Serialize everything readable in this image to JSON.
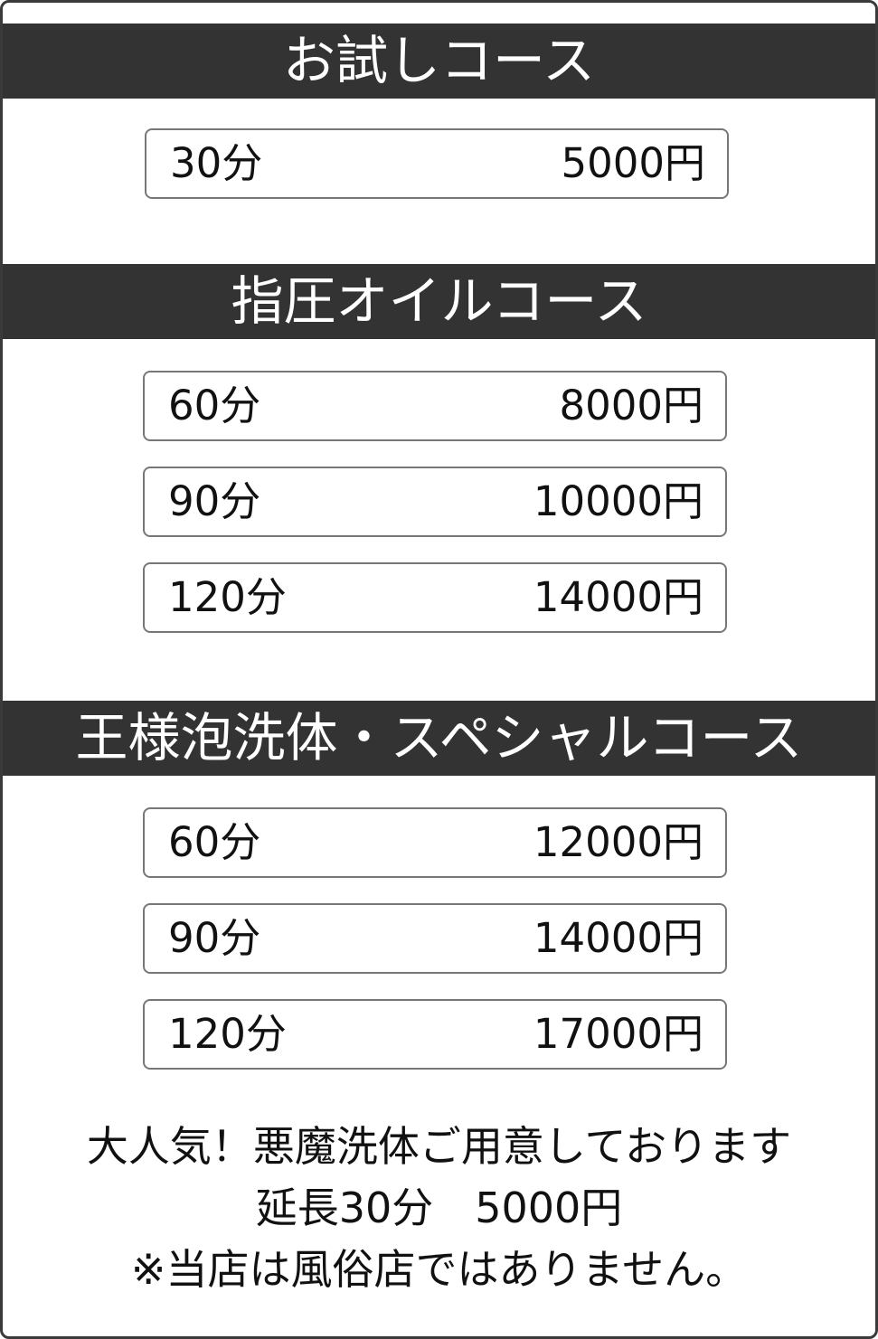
{
  "sections": [
    {
      "title": "お試しコース",
      "items": [
        {
          "duration": "30分",
          "price": "5000円"
        }
      ]
    },
    {
      "title": "指圧オイルコース",
      "items": [
        {
          "duration": "60分",
          "price": "8000円"
        },
        {
          "duration": "90分",
          "price": "10000円"
        },
        {
          "duration": "120分",
          "price": "14000円"
        }
      ]
    },
    {
      "title": "王様泡洗体・スペシャルコース",
      "items": [
        {
          "duration": "60分",
          "price": "12000円"
        },
        {
          "duration": "90分",
          "price": "14000円"
        },
        {
          "duration": "120分",
          "price": "17000円"
        }
      ]
    }
  ],
  "footer": {
    "line1": "大人気！悪魔洗体ご用意しております",
    "line2": "延長30分　5000円",
    "line3": "※当店は風俗店ではありません。"
  },
  "colors": {
    "header_bg": "#333333",
    "box_border": "#777777"
  }
}
